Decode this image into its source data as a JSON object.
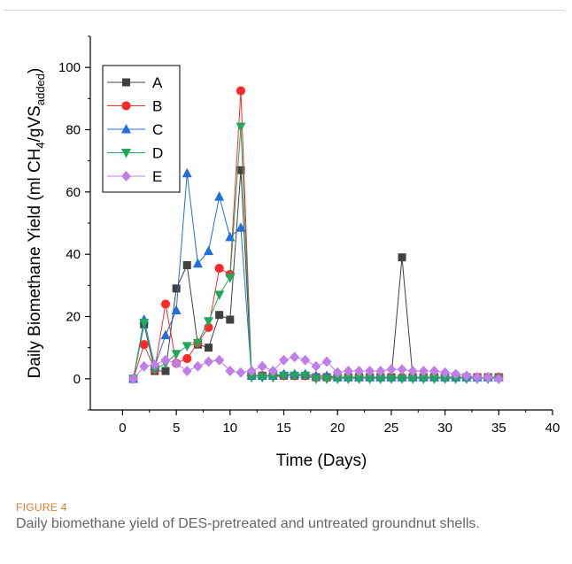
{
  "figure": {
    "label": "FIGURE 4",
    "caption": "Daily biomethane yield of DES-pretreated and untreated groundnut shells."
  },
  "chart_data": {
    "type": "line",
    "xlabel": "Time (Days)",
    "ylabel_prefix": "Daily Biomethane Yield (ml CH",
    "ylabel_sub1": "4",
    "ylabel_mid": "/gVS",
    "ylabel_sub2": "added",
    "ylabel_suffix": ")",
    "xlim": [
      -3,
      40
    ],
    "ylim": [
      -10,
      110
    ],
    "xticks": [
      0,
      5,
      10,
      15,
      20,
      25,
      30,
      35,
      40
    ],
    "yticks": [
      0,
      20,
      40,
      60,
      80,
      100
    ],
    "legend_position": "top-left",
    "grid": false,
    "x": [
      1,
      2,
      3,
      4,
      5,
      6,
      7,
      8,
      9,
      10,
      11,
      12,
      13,
      14,
      15,
      16,
      17,
      18,
      19,
      20,
      21,
      22,
      23,
      24,
      25,
      26,
      27,
      28,
      29,
      30,
      31,
      32,
      33,
      34,
      35
    ],
    "series": [
      {
        "name": "A",
        "color": "#404040",
        "marker": "square",
        "values": [
          0,
          17.5,
          2.5,
          2.5,
          29,
          36.5,
          11,
          10,
          20.5,
          19,
          67,
          1,
          1,
          1,
          1,
          1,
          1,
          0.5,
          0.5,
          0.5,
          0.5,
          0.5,
          0.5,
          0.5,
          0.5,
          39,
          0.5,
          0.5,
          0.5,
          0.5,
          0.5,
          0.5,
          0.5,
          0.5,
          0.5
        ]
      },
      {
        "name": "B",
        "color": "#ff2a2a",
        "marker": "circle",
        "values": [
          0,
          11,
          3,
          24,
          5,
          6.5,
          11.5,
          16.5,
          35.5,
          33.5,
          92.5,
          1,
          1,
          1,
          1,
          1,
          1,
          0.5,
          0.5,
          0.5,
          0.5,
          0.5,
          0.5,
          0.5,
          0.5,
          0.5,
          0.5,
          0.5,
          0.5,
          0.5,
          0.5,
          0.5,
          0.5,
          0.5,
          0.5
        ]
      },
      {
        "name": "C",
        "color": "#1f6fdc",
        "marker": "triangle-up",
        "values": [
          0,
          19,
          4,
          14,
          22,
          66,
          37,
          41,
          58.5,
          45.5,
          48.5,
          1,
          1,
          1,
          1.5,
          1.5,
          1.5,
          1,
          1,
          0.5,
          0.5,
          0.5,
          0.5,
          0.5,
          0.5,
          0.5,
          0.5,
          0.5,
          0.5,
          0.5,
          0.5,
          0.5,
          0.5,
          0.5,
          0.5
        ]
      },
      {
        "name": "D",
        "color": "#1fa85a",
        "marker": "triangle-down",
        "values": [
          0,
          18,
          3,
          5,
          8,
          10.5,
          11.5,
          18.5,
          27,
          32.5,
          81,
          0.5,
          0.5,
          0.5,
          1,
          1,
          1,
          0,
          0,
          0,
          0,
          0,
          0,
          0,
          0,
          0,
          0,
          0,
          0,
          0,
          0,
          0,
          0,
          0,
          0
        ]
      },
      {
        "name": "E",
        "color": "#c07ee8",
        "marker": "diamond",
        "values": [
          0,
          4,
          4.5,
          6,
          5,
          2.5,
          4,
          5.5,
          6,
          2.5,
          2,
          2.5,
          4,
          2.5,
          6,
          7,
          6,
          4,
          5.5,
          2,
          2.5,
          2.5,
          2.5,
          2.5,
          3,
          3,
          2.5,
          2.5,
          2.5,
          2,
          1.5,
          1,
          0.5,
          0.5,
          0
        ]
      }
    ]
  }
}
